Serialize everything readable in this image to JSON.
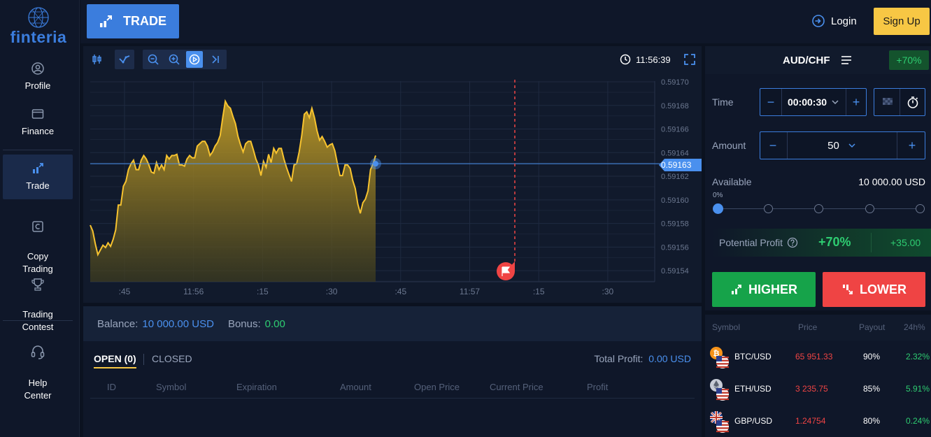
{
  "brand": {
    "name": "finteria"
  },
  "sidebar": {
    "items": [
      {
        "label": "Profile"
      },
      {
        "label": "Finance"
      },
      {
        "label": "Trade"
      },
      {
        "label": "Copy\nTrading"
      },
      {
        "label": "Trading\nContest"
      },
      {
        "label": "Help\nCenter"
      }
    ]
  },
  "topbar": {
    "trade_label": "TRADE",
    "login_label": "Login",
    "signup_label": "Sign Up"
  },
  "chart": {
    "time": "11:56:39",
    "current_price": "0.59163",
    "price_ticks": [
      "0.59170",
      "0.59168",
      "0.59166",
      "0.59164",
      "0.59162",
      "0.59160",
      "0.59158",
      "0.59156",
      "0.59154"
    ],
    "time_ticks": [
      ":45",
      "11:56",
      ":15",
      ":30",
      ":45",
      "11:57",
      ":15",
      ":30"
    ],
    "series": [
      0.591578,
      0.591573,
      0.591562,
      0.591553,
      0.591557,
      0.591561,
      0.591559,
      0.591563,
      0.59156,
      0.591566,
      0.591574,
      0.591595,
      0.591595,
      0.591611,
      0.591615,
      0.591625,
      0.59163,
      0.591633,
      0.591625,
      0.591625,
      0.591633,
      0.591637,
      0.591634,
      0.591629,
      0.591623,
      0.591622,
      0.591631,
      0.591625,
      0.591629,
      0.591625,
      0.591637,
      0.591634,
      0.591637,
      0.591637,
      0.591638,
      0.591629,
      0.591629,
      0.591628,
      0.591634,
      0.591637,
      0.591635,
      0.591635,
      0.591645,
      0.591647,
      0.591649,
      0.591649,
      0.591645,
      0.591637,
      0.59164,
      0.591645,
      0.591648,
      0.591654,
      0.591669,
      0.591683,
      0.591679,
      0.591677,
      0.59167,
      0.591664,
      0.591653,
      0.591646,
      0.59164,
      0.591647,
      0.591649,
      0.591649,
      0.591642,
      0.591634,
      0.591629,
      0.59162,
      0.591632,
      0.591627,
      0.591638,
      0.591631,
      0.591643,
      0.591639,
      0.591643,
      0.591643,
      0.591634,
      0.591627,
      0.591621,
      0.591615,
      0.591629,
      0.59163,
      0.59164,
      0.591654,
      0.591672,
      0.591674,
      0.591669,
      0.591677,
      0.591669,
      0.591658,
      0.59165,
      0.591653,
      0.591649,
      0.591644,
      0.591646,
      0.591647,
      0.591641,
      0.59163,
      0.59162,
      0.59162,
      0.591629,
      0.591629,
      0.591626,
      0.591616,
      0.591609,
      0.591596,
      0.591588,
      0.591597,
      0.5916,
      0.591607,
      0.591625,
      0.59163,
      0.591637
    ]
  },
  "balance": {
    "label": "Balance:",
    "value": "10 000.00 USD",
    "bonus_label": "Bonus:",
    "bonus_value": "0.00"
  },
  "trades": {
    "tab_open": "OPEN (0)",
    "tab_closed": "CLOSED",
    "total_profit_label": "Total Profit:",
    "total_profit_value": "0.00 USD",
    "columns": [
      "ID",
      "Symbol",
      "Expiration",
      "Amount",
      "Open Price",
      "Current Price",
      "Profit"
    ]
  },
  "order": {
    "pair": "AUD/CHF",
    "payout": "+70%",
    "time_label": "Time",
    "time_value": "00:00:30",
    "amount_label": "Amount",
    "amount_value": "50",
    "available_label": "Available",
    "available_value": "10 000.00 USD",
    "slider_percent_label": "0%",
    "slider_level": 0,
    "potential_profit_label": "Potential Profit",
    "potential_profit_pct": "+70%",
    "potential_profit_amount": "+35.00",
    "higher_label": "HIGHER",
    "lower_label": "LOWER"
  },
  "markets": {
    "headers": [
      "Symbol",
      "Price",
      "Payout",
      "24h%"
    ],
    "rows": [
      {
        "symbol": "BTC/USD",
        "price": "65 951.33",
        "payout": "90%",
        "change": "2.32%"
      },
      {
        "symbol": "ETH/USD",
        "price": "3 235.75",
        "payout": "85%",
        "change": "5.91%"
      },
      {
        "symbol": "GBP/USD",
        "price": "1.24754",
        "payout": "80%",
        "change": "0.24%"
      }
    ]
  },
  "colors": {
    "accent": "#3b7ddd",
    "line": "#f7c32f",
    "green": "#16a34a",
    "red": "#ef4444",
    "signup": "#f7c744"
  }
}
